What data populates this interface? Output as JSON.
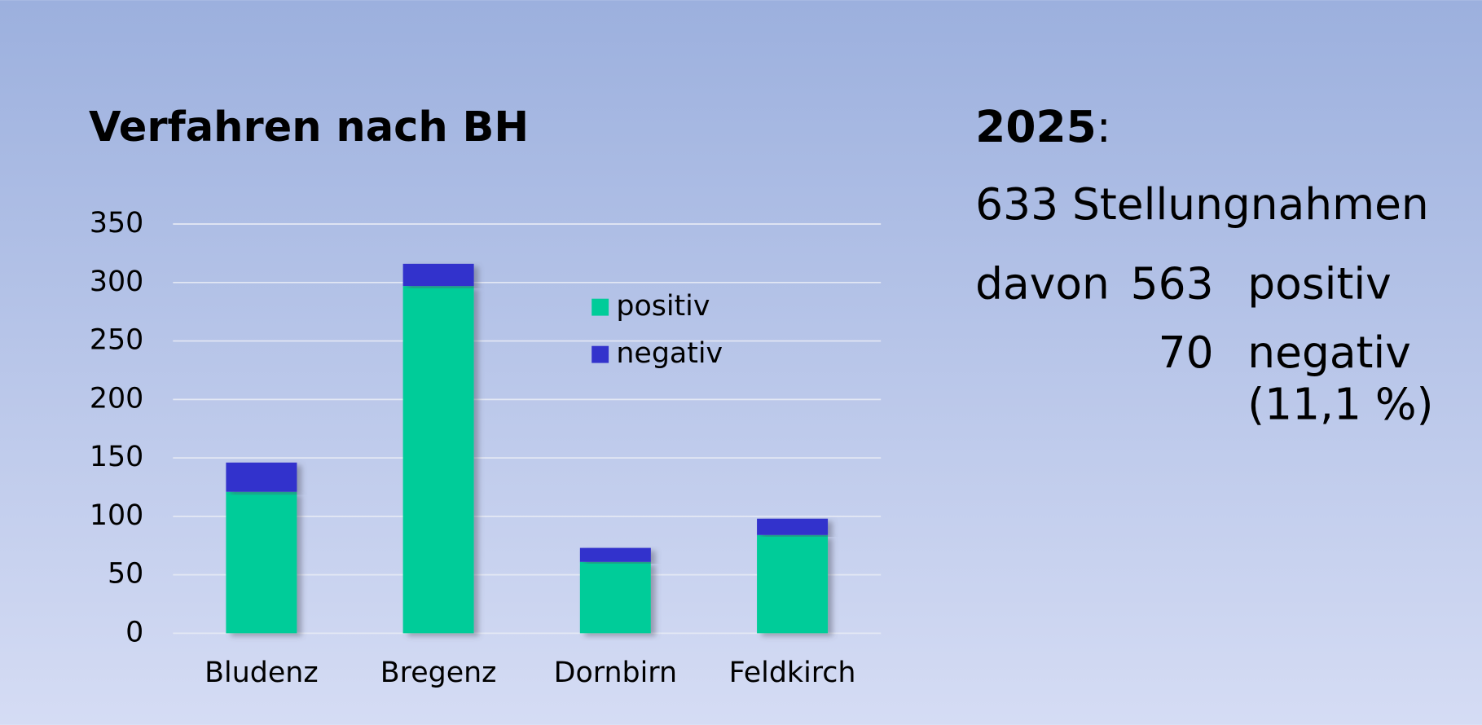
{
  "chart_data": {
    "type": "stacked_bar",
    "title": "Verfahren nach BH",
    "categories": [
      "Bludenz",
      "Bregenz",
      "Dornbirn",
      "Feldkirch"
    ],
    "series": [
      {
        "name": "positiv",
        "color": "#00cc99",
        "values": [
          121,
          297,
          61,
          84
        ]
      },
      {
        "name": "negativ",
        "color": "#3333cc",
        "values": [
          25,
          19,
          12,
          14
        ]
      }
    ],
    "ylim": [
      0,
      350
    ],
    "yticks": [
      0,
      50,
      100,
      150,
      200,
      250,
      300,
      350
    ],
    "grid": true
  },
  "summary": {
    "year": "2025",
    "colon": ":",
    "total": "633 Stellungnahmen",
    "davon": "davon",
    "positive_count": 563,
    "positive_label": "positiv",
    "negative_count": 70,
    "negative_label": "negativ",
    "negative_share": "(11,1 %)"
  }
}
